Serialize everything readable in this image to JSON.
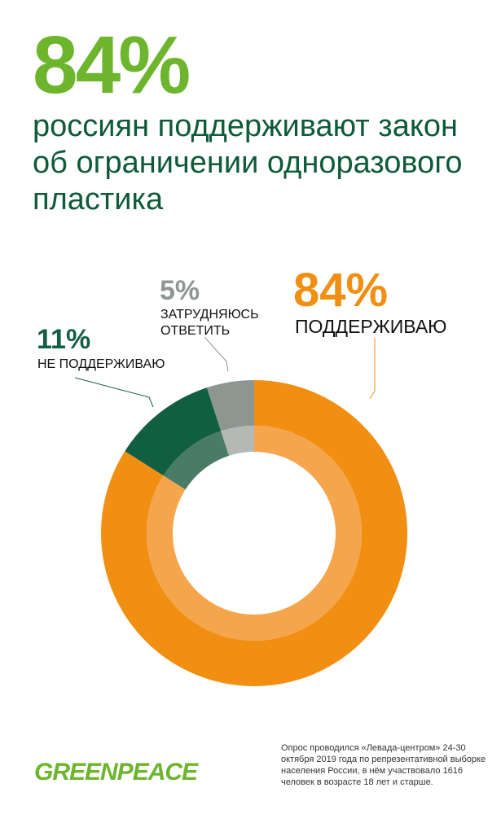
{
  "headline": {
    "percent": "84%",
    "text": "россиян поддерживают закон об ограничении одноразового пластика"
  },
  "chart_data": {
    "type": "pie",
    "title": "84% россиян поддерживают закон об ограничении одноразового пластика",
    "slices": [
      {
        "label": "ПОДДЕРЖИВАЮ",
        "value": 84,
        "display": "84%",
        "color": "#f18f13",
        "inner_color": "#f5a54b"
      },
      {
        "label": "НЕ ПОДДЕРЖИВАЮ",
        "value": 11,
        "display": "11%",
        "color": "#125e43",
        "inner_color": "#4a7b66"
      },
      {
        "label": "ЗАТРУДНЯЮСЬ ОТВЕТИТЬ",
        "value": 5,
        "display": "5%",
        "color": "#8e9692",
        "inner_color": "#b4b9b6"
      }
    ]
  },
  "footer": {
    "logo": "GREENPEACE",
    "note": "Опрос проводился «Левада-центром» 24-30 октября 2019 года по репрезентативной выборке населения России, в нём участвовало 1616 человек в возрасте 18 лет и старше."
  }
}
